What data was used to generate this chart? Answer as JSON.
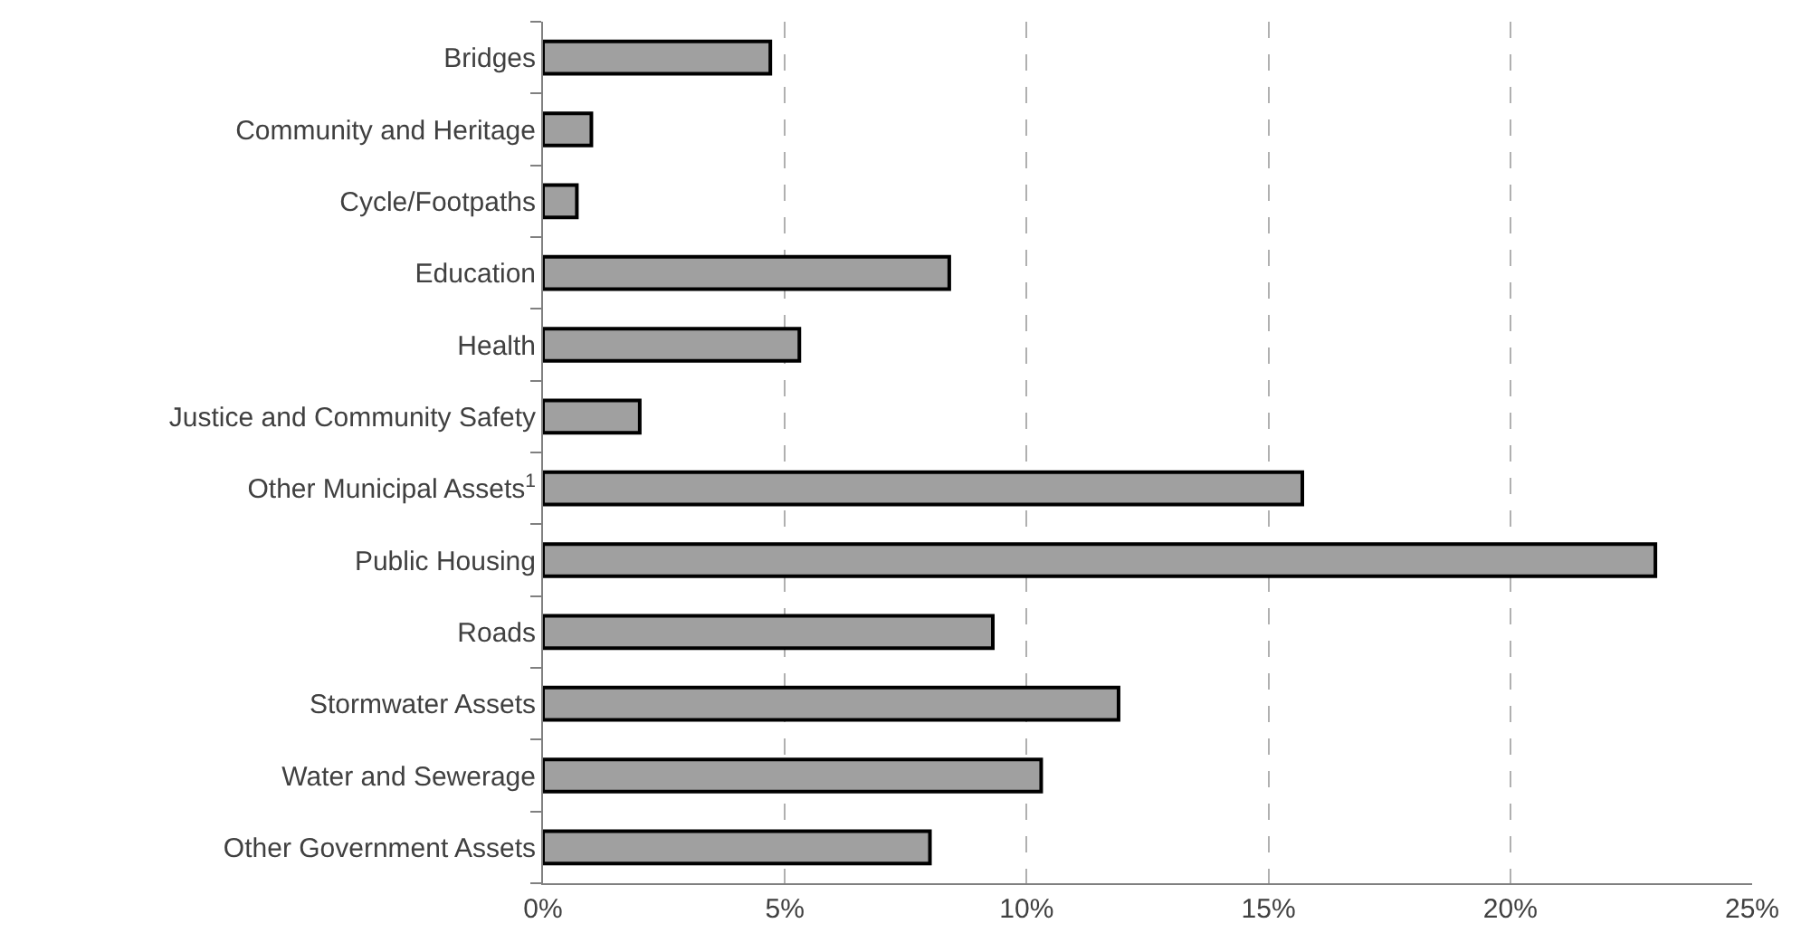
{
  "chart_data": {
    "type": "bar",
    "orientation": "horizontal",
    "categories": [
      "Bridges",
      "Community and Heritage",
      "Cycle/Footpaths",
      "Education",
      "Health",
      "Justice and Community Safety",
      "Other Municipal Assets$^{1}$",
      "Public Housing",
      "Roads",
      "Stormwater Assets",
      "Water and Sewerage",
      "Other Government Assets"
    ],
    "values": [
      4.7,
      1.0,
      0.7,
      8.4,
      5.3,
      2.0,
      15.7,
      23.0,
      9.3,
      11.9,
      10.3,
      8.0
    ],
    "color": "#a0a0a0",
    "xlim": [
      0,
      25
    ],
    "xticks": [
      {
        "value": 0,
        "label": "0%"
      },
      {
        "value": 5,
        "label": "5%"
      },
      {
        "value": 10,
        "label": "10%"
      },
      {
        "value": 15,
        "label": "15%"
      },
      {
        "value": 20,
        "label": "20%"
      },
      {
        "value": 25,
        "label": "25%"
      }
    ],
    "grid": "x",
    "legend": false
  }
}
